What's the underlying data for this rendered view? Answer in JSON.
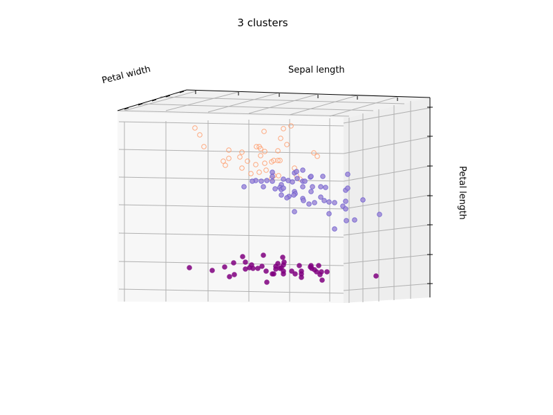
{
  "chart_data": {
    "type": "scatter",
    "title": "3 clusters",
    "axis_labels": {
      "x": "Petal width",
      "y": "Sepal length",
      "z": "Petal length"
    },
    "projection": "3d",
    "grid": true,
    "marker_style": "hollow for cluster 3, filled for clusters 1 and 2",
    "series": [
      {
        "color": "#ff9966",
        "fill": "none",
        "points_screen_order": [
          [
            282,
            185
          ],
          [
            289,
            195
          ],
          [
            295,
            212
          ],
          [
            331,
            217
          ],
          [
            326,
            239
          ],
          [
            331,
            229
          ],
          [
            323,
            233
          ],
          [
            350,
            220
          ],
          [
            347,
            227
          ],
          [
            358,
            233
          ],
          [
            363,
            251
          ],
          [
            350,
            243
          ],
          [
            371,
            212
          ],
          [
            382,
            190
          ],
          [
            377,
            215
          ],
          [
            375,
            212
          ],
          [
            377,
            225
          ],
          [
            370,
            238
          ],
          [
            375,
            249
          ],
          [
            383,
            236
          ],
          [
            385,
            246
          ],
          [
            396,
            232
          ],
          [
            402,
            232
          ],
          [
            405,
            232
          ],
          [
            383,
            219
          ],
          [
            393,
            234
          ],
          [
            402,
            218
          ],
          [
            410,
            186
          ],
          [
            421,
            182
          ],
          [
            415,
            209
          ],
          [
            406,
            200
          ],
          [
            396,
            254
          ],
          [
            393,
            258
          ],
          [
            403,
            254
          ],
          [
            426,
            243
          ],
          [
            429,
            254
          ],
          [
            454,
            221
          ],
          [
            459,
            226
          ],
          [
            434,
            259
          ]
        ]
      },
      {
        "color": "#6a5acd",
        "fill": "#9f8ad8",
        "points_screen_order": [
          [
            394,
            249
          ],
          [
            394,
            255
          ],
          [
            394,
            262
          ],
          [
            386,
            261
          ],
          [
            378,
            262
          ],
          [
            370,
            261
          ],
          [
            365,
            262
          ],
          [
            353,
            270
          ],
          [
            381,
            270
          ],
          [
            398,
            273
          ],
          [
            407,
            267
          ],
          [
            405,
            271
          ],
          [
            410,
            259
          ],
          [
            407,
            274
          ],
          [
            410,
            272
          ],
          [
            417,
            261
          ],
          [
            423,
            263
          ],
          [
            426,
            250
          ],
          [
            429,
            248
          ],
          [
            430,
            258
          ],
          [
            438,
            246
          ],
          [
            438,
            262
          ],
          [
            441,
            262
          ],
          [
            449,
            256
          ],
          [
            450,
            255
          ],
          [
            452,
            270
          ],
          [
            450,
            277
          ],
          [
            464,
            270
          ],
          [
            471,
            271
          ],
          [
            467,
            255
          ],
          [
            438,
            270
          ],
          [
            426,
            277
          ],
          [
            427,
            280
          ],
          [
            425,
            282
          ],
          [
            418,
            284
          ],
          [
            415,
            286
          ],
          [
            407,
            282
          ],
          [
            438,
            287
          ],
          [
            439,
            290
          ],
          [
            447,
            295
          ],
          [
            455,
            293
          ],
          [
            464,
            285
          ],
          [
            469,
            290
          ],
          [
            476,
            292
          ],
          [
            484,
            293
          ],
          [
            496,
            298
          ],
          [
            500,
            291
          ],
          [
            500,
            275
          ],
          [
            503,
            272
          ],
          [
            503,
            252
          ],
          [
            476,
            309
          ],
          [
            484,
            331
          ],
          [
            501,
            319
          ],
          [
            513,
            318
          ],
          [
            525,
            289
          ],
          [
            549,
            310
          ],
          [
            426,
            306
          ],
          [
            500,
            302
          ]
        ]
      },
      {
        "color": "#800080",
        "fill": "#800080",
        "points_screen_order": [
          [
            274,
            387
          ],
          [
            307,
            391
          ],
          [
            325,
            386
          ],
          [
            338,
            380
          ],
          [
            332,
            400
          ],
          [
            339,
            397
          ],
          [
            351,
            371
          ],
          [
            355,
            379
          ],
          [
            355,
            389
          ],
          [
            361,
            387
          ],
          [
            364,
            383
          ],
          [
            366,
            388
          ],
          [
            373,
            388
          ],
          [
            381,
            369
          ],
          [
            379,
            385
          ],
          [
            385,
            392
          ],
          [
            386,
            408
          ],
          [
            394,
            396
          ],
          [
            399,
            389
          ],
          [
            396,
            396
          ],
          [
            399,
            385
          ],
          [
            402,
            381
          ],
          [
            405,
            388
          ],
          [
            407,
            387
          ],
          [
            409,
            372
          ],
          [
            411,
            379
          ],
          [
            410,
            383
          ],
          [
            410,
            392
          ],
          [
            410,
            396
          ],
          [
            422,
            392
          ],
          [
            427,
            396
          ],
          [
            433,
            384
          ],
          [
            436,
            392
          ],
          [
            436,
            396
          ],
          [
            436,
            401
          ],
          [
            449,
            386
          ],
          [
            450,
            384
          ],
          [
            451,
            388
          ],
          [
            455,
            390
          ],
          [
            458,
            393
          ],
          [
            461,
            384
          ],
          [
            463,
            397
          ],
          [
            465,
            393
          ],
          [
            466,
            405
          ],
          [
            473,
            393
          ],
          [
            544,
            399
          ]
        ]
      }
    ]
  }
}
